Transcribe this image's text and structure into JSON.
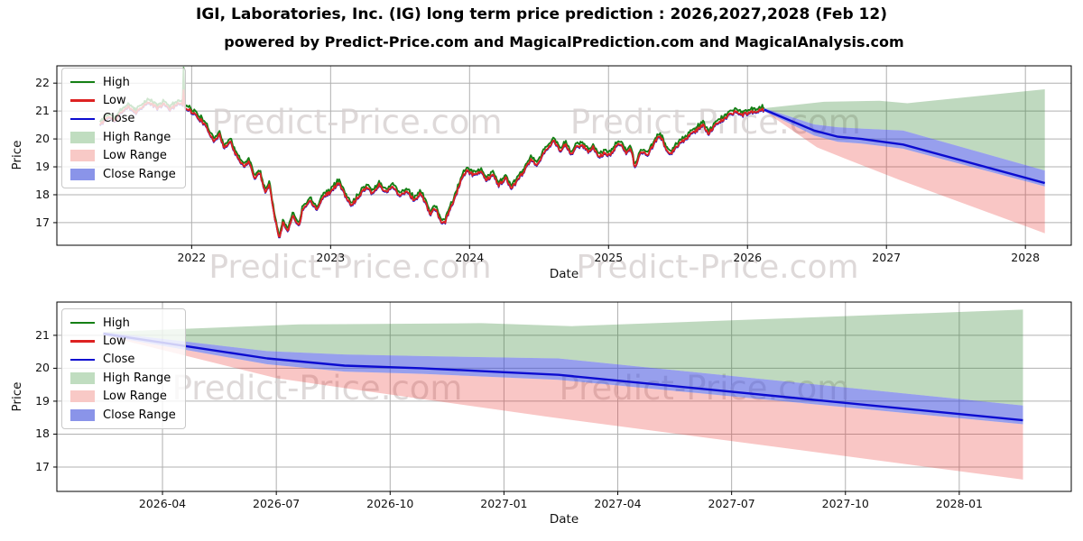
{
  "header": {
    "title": "IGI, Laboratories, Inc. (IG) long term price prediction : 2026,2027,2028 (Feb 12)",
    "subtitle": "powered by Predict-Price.com and MagicalPrediction.com and MagicalAnalysis.com"
  },
  "watermark": "Predict-Price.com",
  "colors": {
    "high_line": "#158015",
    "low_line": "#dd2222",
    "close_line": "#0c0cd0",
    "high_range_fill": "rgba(44,130,44,0.30)",
    "low_range_fill": "rgba(235,50,45,0.28)",
    "close_range_fill": "rgba(55,70,220,0.52)",
    "legend_high_range": "#c0ddc0",
    "legend_low_range": "#f8c9c6",
    "legend_close_range": "#8a94e9",
    "grid": "#b0b0b0",
    "spine": "#000000",
    "watermark": "#d6d0d0"
  },
  "legend": [
    {
      "label": "High",
      "swatch": "line",
      "color_key": "high_line"
    },
    {
      "label": "Low",
      "swatch": "line",
      "color_key": "low_line"
    },
    {
      "label": "Close",
      "swatch": "line",
      "color_key": "close_line"
    },
    {
      "label": "High Range",
      "swatch": "fill",
      "color_key": "legend_high_range"
    },
    {
      "label": "Low Range",
      "swatch": "fill",
      "color_key": "legend_low_range"
    },
    {
      "label": "Close Range",
      "swatch": "fill",
      "color_key": "legend_close_range"
    }
  ],
  "chart_data": [
    {
      "type": "line+area",
      "name": "history-and-prediction-chart",
      "xlabel": "Date",
      "ylabel": "Price",
      "grid": true,
      "legend_position": "upper left",
      "xlim": [
        2021.03,
        2028.33
      ],
      "ylim": [
        16.19,
        22.62
      ],
      "xticks": [
        {
          "v": 2022,
          "label": "2022"
        },
        {
          "v": 2023,
          "label": "2023"
        },
        {
          "v": 2024,
          "label": "2024"
        },
        {
          "v": 2025,
          "label": "2025"
        },
        {
          "v": 2026,
          "label": "2026"
        },
        {
          "v": 2027,
          "label": "2027"
        },
        {
          "v": 2028,
          "label": "2028"
        }
      ],
      "yticks": [
        {
          "v": 17,
          "label": "17"
        },
        {
          "v": 18,
          "label": "18"
        },
        {
          "v": 19,
          "label": "19"
        },
        {
          "v": 20,
          "label": "20"
        },
        {
          "v": 21,
          "label": "21"
        },
        {
          "v": 22,
          "label": "22"
        }
      ],
      "watermarks": [
        {
          "x": 2023.19,
          "y": 20.2
        },
        {
          "x": 2025.77,
          "y": 20.2
        }
      ],
      "history": {
        "spike": {
          "x": 2021.94,
          "high": 22.55,
          "low": 21.75
        },
        "points": [
          [
            2021.34,
            20.5
          ],
          [
            2021.4,
            20.8
          ],
          [
            2021.45,
            20.65
          ],
          [
            2021.5,
            21.0
          ],
          [
            2021.55,
            21.15
          ],
          [
            2021.6,
            20.95
          ],
          [
            2021.65,
            21.2
          ],
          [
            2021.7,
            21.3
          ],
          [
            2021.75,
            21.1
          ],
          [
            2021.8,
            21.25
          ],
          [
            2021.85,
            21.05
          ],
          [
            2021.9,
            21.3
          ],
          [
            2021.94,
            21.2
          ],
          [
            2021.98,
            21.05
          ],
          [
            2022.03,
            20.85
          ],
          [
            2022.08,
            20.6
          ],
          [
            2022.13,
            20.2
          ],
          [
            2022.16,
            19.95
          ],
          [
            2022.2,
            20.15
          ],
          [
            2022.23,
            19.7
          ],
          [
            2022.28,
            19.9
          ],
          [
            2022.33,
            19.3
          ],
          [
            2022.38,
            19.0
          ],
          [
            2022.41,
            19.25
          ],
          [
            2022.45,
            18.6
          ],
          [
            2022.49,
            18.8
          ],
          [
            2022.53,
            18.1
          ],
          [
            2022.56,
            18.35
          ],
          [
            2022.6,
            17.15
          ],
          [
            2022.63,
            16.45
          ],
          [
            2022.66,
            17.05
          ],
          [
            2022.69,
            16.65
          ],
          [
            2022.73,
            17.3
          ],
          [
            2022.77,
            16.85
          ],
          [
            2022.8,
            17.5
          ],
          [
            2022.85,
            17.8
          ],
          [
            2022.9,
            17.5
          ],
          [
            2022.95,
            17.95
          ],
          [
            2023.0,
            18.1
          ],
          [
            2023.06,
            18.45
          ],
          [
            2023.1,
            18.0
          ],
          [
            2023.15,
            17.6
          ],
          [
            2023.2,
            17.95
          ],
          [
            2023.26,
            18.3
          ],
          [
            2023.3,
            18.05
          ],
          [
            2023.35,
            18.35
          ],
          [
            2023.4,
            18.1
          ],
          [
            2023.45,
            18.3
          ],
          [
            2023.5,
            17.95
          ],
          [
            2023.55,
            18.15
          ],
          [
            2023.6,
            17.8
          ],
          [
            2023.65,
            18.05
          ],
          [
            2023.69,
            17.6
          ],
          [
            2023.72,
            17.3
          ],
          [
            2023.75,
            17.55
          ],
          [
            2023.79,
            17.05
          ],
          [
            2023.82,
            16.98
          ],
          [
            2023.86,
            17.5
          ],
          [
            2023.9,
            17.95
          ],
          [
            2023.94,
            18.55
          ],
          [
            2023.98,
            18.85
          ],
          [
            2024.03,
            18.7
          ],
          [
            2024.08,
            18.85
          ],
          [
            2024.12,
            18.55
          ],
          [
            2024.17,
            18.7
          ],
          [
            2024.21,
            18.35
          ],
          [
            2024.26,
            18.6
          ],
          [
            2024.3,
            18.2
          ],
          [
            2024.35,
            18.55
          ],
          [
            2024.4,
            18.9
          ],
          [
            2024.44,
            19.25
          ],
          [
            2024.48,
            19.05
          ],
          [
            2024.53,
            19.45
          ],
          [
            2024.57,
            19.7
          ],
          [
            2024.61,
            19.95
          ],
          [
            2024.65,
            19.55
          ],
          [
            2024.69,
            19.8
          ],
          [
            2024.73,
            19.45
          ],
          [
            2024.77,
            19.7
          ],
          [
            2024.81,
            19.8
          ],
          [
            2024.85,
            19.55
          ],
          [
            2024.89,
            19.7
          ],
          [
            2024.93,
            19.35
          ],
          [
            2024.97,
            19.5
          ],
          [
            2025.01,
            19.4
          ],
          [
            2025.05,
            19.7
          ],
          [
            2025.09,
            19.85
          ],
          [
            2025.13,
            19.5
          ],
          [
            2025.16,
            19.65
          ],
          [
            2025.19,
            18.95
          ],
          [
            2025.23,
            19.55
          ],
          [
            2025.28,
            19.4
          ],
          [
            2025.33,
            19.85
          ],
          [
            2025.37,
            20.15
          ],
          [
            2025.41,
            19.65
          ],
          [
            2025.44,
            19.4
          ],
          [
            2025.49,
            19.75
          ],
          [
            2025.54,
            19.95
          ],
          [
            2025.58,
            20.1
          ],
          [
            2025.63,
            20.3
          ],
          [
            2025.68,
            20.5
          ],
          [
            2025.72,
            20.2
          ],
          [
            2025.76,
            20.45
          ],
          [
            2025.8,
            20.6
          ],
          [
            2025.84,
            20.75
          ],
          [
            2025.88,
            20.9
          ],
          [
            2025.92,
            21.0
          ],
          [
            2025.95,
            20.85
          ],
          [
            2025.99,
            20.9
          ],
          [
            2026.03,
            20.95
          ],
          [
            2026.07,
            21.0
          ],
          [
            2026.12,
            21.05
          ]
        ]
      },
      "prediction": {
        "close": [
          [
            2026.12,
            21.05
          ],
          [
            2026.48,
            20.3
          ],
          [
            2026.65,
            20.08
          ],
          [
            2026.82,
            20.0
          ],
          [
            2027.0,
            19.88
          ],
          [
            2027.12,
            19.8
          ],
          [
            2028.14,
            18.42
          ]
        ],
        "close_range_high": [
          [
            2026.12,
            21.1
          ],
          [
            2026.48,
            20.52
          ],
          [
            2026.65,
            20.42
          ],
          [
            2026.82,
            20.37
          ],
          [
            2027.12,
            20.3
          ],
          [
            2028.14,
            18.87
          ]
        ],
        "close_range_low": [
          [
            2026.12,
            21.0
          ],
          [
            2026.48,
            20.12
          ],
          [
            2026.65,
            19.9
          ],
          [
            2026.82,
            19.83
          ],
          [
            2027.12,
            19.65
          ],
          [
            2028.14,
            18.3
          ]
        ],
        "high_range_top": [
          [
            2026.12,
            21.1
          ],
          [
            2026.55,
            21.33
          ],
          [
            2026.95,
            21.37
          ],
          [
            2027.15,
            21.28
          ],
          [
            2028.14,
            21.78
          ]
        ],
        "low_range_bottom": [
          [
            2026.12,
            21.0
          ],
          [
            2026.5,
            19.7
          ],
          [
            2026.7,
            19.3
          ],
          [
            2027.1,
            18.52
          ],
          [
            2028.14,
            16.62
          ]
        ]
      }
    },
    {
      "type": "line+area",
      "name": "prediction-zoom-chart",
      "xlabel": "Date",
      "ylabel": "Price",
      "grid": true,
      "legend_position": "upper left",
      "xlim": [
        2026.018,
        2028.246
      ],
      "ylim": [
        16.26,
        22.01
      ],
      "xticks": [
        {
          "v": 2026.25,
          "label": "2026-04"
        },
        {
          "v": 2026.5,
          "label": "2026-07"
        },
        {
          "v": 2026.75,
          "label": "2026-10"
        },
        {
          "v": 2027.0,
          "label": "2027-01"
        },
        {
          "v": 2027.25,
          "label": "2027-04"
        },
        {
          "v": 2027.5,
          "label": "2027-07"
        },
        {
          "v": 2027.75,
          "label": "2027-10"
        },
        {
          "v": 2028.0,
          "label": "2028-01"
        }
      ],
      "yticks": [
        {
          "v": 17,
          "label": "17"
        },
        {
          "v": 18,
          "label": "18"
        },
        {
          "v": 19,
          "label": "19"
        },
        {
          "v": 20,
          "label": "20"
        },
        {
          "v": 21,
          "label": "21"
        }
      ],
      "watermarks": [
        {
          "x": 2026.59,
          "y": 19.05
        },
        {
          "x": 2027.44,
          "y": 19.05
        }
      ],
      "history": null,
      "prediction": {
        "close": [
          [
            2026.12,
            21.05
          ],
          [
            2026.48,
            20.3
          ],
          [
            2026.65,
            20.08
          ],
          [
            2026.82,
            20.0
          ],
          [
            2027.0,
            19.88
          ],
          [
            2027.12,
            19.8
          ],
          [
            2028.14,
            18.42
          ]
        ],
        "close_range_high": [
          [
            2026.12,
            21.1
          ],
          [
            2026.48,
            20.52
          ],
          [
            2026.65,
            20.42
          ],
          [
            2026.82,
            20.37
          ],
          [
            2027.12,
            20.3
          ],
          [
            2028.14,
            18.87
          ]
        ],
        "close_range_low": [
          [
            2026.12,
            21.0
          ],
          [
            2026.48,
            20.12
          ],
          [
            2026.65,
            19.9
          ],
          [
            2026.82,
            19.83
          ],
          [
            2027.12,
            19.65
          ],
          [
            2028.14,
            18.3
          ]
        ],
        "high_range_top": [
          [
            2026.12,
            21.1
          ],
          [
            2026.55,
            21.33
          ],
          [
            2026.95,
            21.37
          ],
          [
            2027.15,
            21.28
          ],
          [
            2028.14,
            21.78
          ]
        ],
        "low_range_bottom": [
          [
            2026.12,
            21.0
          ],
          [
            2026.5,
            19.7
          ],
          [
            2026.7,
            19.3
          ],
          [
            2027.1,
            18.52
          ],
          [
            2028.14,
            16.62
          ]
        ]
      }
    }
  ]
}
